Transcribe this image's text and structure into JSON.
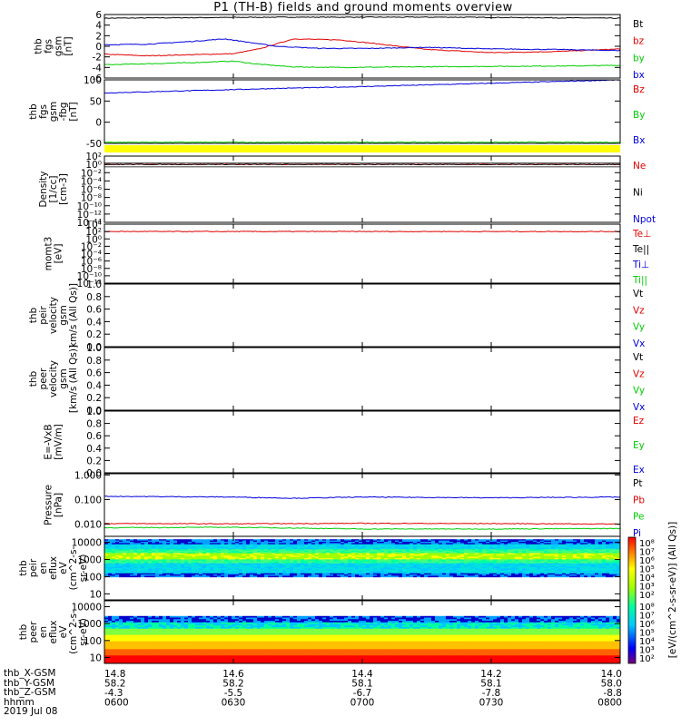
{
  "title": "P1 (TH-B) fields and ground moments overview",
  "colors": {
    "black": "#000000",
    "red": "#e00000",
    "green": "#00cc00",
    "blue": "#0000dd",
    "yellow": "#ffff00"
  },
  "chart_data": [
    {
      "id": "fgs-gsm",
      "type": "line",
      "ylabel": [
        "thb",
        "fgs",
        "gsm",
        "[nT]"
      ],
      "ylim": [
        -6,
        6
      ],
      "yticks": [
        "6",
        "4",
        "2",
        "0",
        "-2",
        "-4",
        "-6"
      ],
      "xlim": [
        0,
        120
      ],
      "series": [
        {
          "name": "Bt",
          "color": "#000000",
          "x": [
            0,
            20,
            40,
            60,
            80,
            100,
            120
          ],
          "y": [
            5.3,
            5.4,
            5.5,
            5.5,
            5.5,
            5.4,
            5.3
          ]
        },
        {
          "name": "bz",
          "color": "#e00000",
          "x": [
            0,
            10,
            20,
            30,
            36,
            44,
            55,
            62,
            75,
            90,
            105,
            120
          ],
          "y": [
            -1.5,
            -1.8,
            -1.6,
            -1.4,
            -0.5,
            1.4,
            1.2,
            0.6,
            -0.6,
            -1.2,
            -1.0,
            -0.5
          ]
        },
        {
          "name": "by",
          "color": "#00cc00",
          "x": [
            0,
            10,
            20,
            30,
            36,
            44,
            55,
            70,
            90,
            110,
            120
          ],
          "y": [
            -3.5,
            -3.3,
            -3.1,
            -2.8,
            -3.4,
            -3.9,
            -4.0,
            -3.9,
            -3.8,
            -3.7,
            -3.6
          ]
        },
        {
          "name": "bx",
          "color": "#0000dd",
          "x": [
            0,
            10,
            20,
            28,
            34,
            40,
            50,
            62,
            75,
            90,
            105,
            120
          ],
          "y": [
            0.3,
            0.4,
            0.9,
            1.4,
            0.7,
            0.0,
            -0.4,
            -0.4,
            -0.2,
            -0.5,
            -0.6,
            -0.8
          ]
        }
      ]
    },
    {
      "id": "fgs-gse",
      "type": "line",
      "ylabel": [
        "thb",
        "fgs",
        "gsm",
        "-fbg",
        "[nT]"
      ],
      "ylim": [
        -70,
        100
      ],
      "yticks": [
        "100",
        "50",
        "0",
        "-50"
      ],
      "xlim": [
        0,
        120
      ],
      "series": [
        {
          "name": "Bz",
          "color": "#e00000",
          "x": [],
          "y": []
        },
        {
          "name": "By",
          "color": "#00cc00",
          "x": [
            0,
            120
          ],
          "y": [
            -67,
            -67
          ]
        },
        {
          "name": "Bx",
          "color": "#0000dd",
          "x": [
            0,
            20,
            40,
            60,
            80,
            100,
            120
          ],
          "y": [
            65,
            71,
            77,
            82,
            88,
            94,
            100
          ]
        }
      ]
    },
    {
      "id": "density",
      "type": "line",
      "log": true,
      "ylabel": [
        "Density",
        "[1/cc]",
        "[cm-3]"
      ],
      "ylim": [
        -14,
        2
      ],
      "yticks": [
        "10²",
        "10⁰",
        "10⁻²",
        "10⁻⁴",
        "10⁻⁶",
        "10⁻⁸",
        "10⁻¹⁰",
        "10⁻¹²",
        "10⁻¹⁴"
      ],
      "xlim": [
        0,
        120
      ],
      "series": [
        {
          "name": "Ne",
          "color": "#e00000",
          "x": [
            0,
            60,
            120
          ],
          "y": [
            0.0,
            0.0,
            0.0
          ]
        },
        {
          "name": "Ni",
          "color": "#000000",
          "x": [
            0,
            120
          ],
          "y": [
            0.0,
            0.0
          ]
        },
        {
          "name": "Npot",
          "color": "#0000dd",
          "x": [],
          "y": []
        }
      ]
    },
    {
      "id": "temperature",
      "type": "line",
      "log": true,
      "ylabel": [
        "momt3",
        "[eV]"
      ],
      "ylim": [
        -12,
        4
      ],
      "yticks": [
        "10⁴",
        "10²",
        "10⁰",
        "10⁻²",
        "10⁻⁴",
        "10⁻⁶",
        "10⁻⁸",
        "10⁻¹⁰",
        "10⁻¹²"
      ],
      "xlim": [
        0,
        120
      ],
      "series": [
        {
          "name": "Te⊥",
          "color": "#e00000",
          "x": [
            0,
            120
          ],
          "y": [
            2.0,
            2.0
          ]
        },
        {
          "name": "Te||",
          "color": "#000000",
          "x": [],
          "y": []
        },
        {
          "name": "Ti⊥",
          "color": "#0000dd",
          "x": [],
          "y": []
        },
        {
          "name": "Ti||",
          "color": "#00cc00",
          "x": [],
          "y": []
        }
      ]
    },
    {
      "id": "peir-velocity",
      "type": "line",
      "ylabel": [
        "thb",
        "peir",
        "velocity",
        "gsm",
        "km/s (All Qs)]"
      ],
      "ylim": [
        0,
        1
      ],
      "yticks": [
        "1.0",
        "0.8",
        "0.6",
        "0.4",
        "0.2",
        "0.0"
      ],
      "xlim": [
        0,
        120
      ],
      "series": [
        {
          "name": "Vt",
          "color": "#000000",
          "x": [],
          "y": []
        },
        {
          "name": "Vz",
          "color": "#e00000",
          "x": [],
          "y": []
        },
        {
          "name": "Vy",
          "color": "#00cc00",
          "x": [],
          "y": []
        },
        {
          "name": "Vx",
          "color": "#0000dd",
          "x": [],
          "y": []
        }
      ]
    },
    {
      "id": "peer-velocity",
      "type": "line",
      "ylabel": [
        "thb",
        "peer",
        "velocity",
        "gsm",
        "[km/s (All Qs)]"
      ],
      "ylim": [
        0,
        1
      ],
      "yticks": [
        "1.0",
        "0.8",
        "0.6",
        "0.4",
        "0.2",
        "0.0"
      ],
      "xlim": [
        0,
        120
      ],
      "series": [
        {
          "name": "Vt",
          "color": "#000000",
          "x": [],
          "y": []
        },
        {
          "name": "Vz",
          "color": "#e00000",
          "x": [],
          "y": []
        },
        {
          "name": "Vy",
          "color": "#00cc00",
          "x": [],
          "y": []
        },
        {
          "name": "Vx",
          "color": "#0000dd",
          "x": [],
          "y": []
        }
      ]
    },
    {
      "id": "efield",
      "type": "line",
      "ylabel": [
        "E=-VxB",
        "[mV/m]"
      ],
      "ylim": [
        0,
        1
      ],
      "yticks": [
        "1.0",
        "0.8",
        "0.6",
        "0.4",
        "0.2",
        "0.0"
      ],
      "xlim": [
        0,
        120
      ],
      "series": [
        {
          "name": "Ez",
          "color": "#e00000",
          "x": [],
          "y": []
        },
        {
          "name": "Ey",
          "color": "#00cc00",
          "x": [],
          "y": []
        },
        {
          "name": "Ex",
          "color": "#0000dd",
          "x": [],
          "y": []
        }
      ]
    },
    {
      "id": "pressure",
      "type": "line",
      "log": true,
      "ylabel": [
        "Pressure",
        "[nPa]"
      ],
      "ylim": [
        -2.5,
        0.05
      ],
      "yticks": [
        "1.000",
        "0.100",
        "0.010"
      ],
      "ytick_values": [
        0,
        -1,
        -2
      ],
      "xlim": [
        0,
        120
      ],
      "series": [
        {
          "name": "Pt",
          "color": "#000000",
          "x": [],
          "y": []
        },
        {
          "name": "Pb",
          "color": "#e00000",
          "x": [
            0,
            30,
            60,
            90,
            120
          ],
          "y": [
            -1.98,
            -1.99,
            -1.97,
            -1.98,
            -2.0
          ]
        },
        {
          "name": "Pe",
          "color": "#00cc00",
          "x": [
            0,
            30,
            60,
            90,
            120
          ],
          "y": [
            -2.15,
            -2.13,
            -2.2,
            -2.2,
            -2.18
          ]
        },
        {
          "name": "Pi",
          "color": "#0000dd",
          "x": [
            0,
            30,
            44,
            60,
            90,
            120
          ],
          "y": [
            -0.87,
            -0.9,
            -0.95,
            -0.9,
            -0.93,
            -0.9
          ]
        }
      ]
    },
    {
      "id": "peir-spec",
      "type": "heatmap",
      "ylabel": [
        "thb",
        "peir",
        "en",
        "eflux",
        "eV",
        "(cm^2-s-",
        "sr-eV)"
      ],
      "yticks": [
        "10000",
        "1000",
        "100",
        "10"
      ],
      "ytick_values": [
        4,
        3,
        2,
        1
      ],
      "ylim": [
        0.65,
        4.35
      ],
      "xlim": [
        0,
        120
      ],
      "energy_band_log_eV": [
        1.98,
        4.18
      ],
      "peak_log_eV": 3.0
    },
    {
      "id": "peer-spec",
      "type": "heatmap",
      "ylabel": [
        "thb",
        "peer",
        "en",
        "eflux",
        "eV",
        "(cm^2-s-",
        "sr-eV)"
      ],
      "yticks": [
        "10000",
        "1000",
        "100",
        "10"
      ],
      "ytick_values": [
        4,
        3,
        2,
        1
      ],
      "ylim": [
        0.65,
        4.35
      ],
      "xlim": [
        0,
        120
      ],
      "energy_band_log_eV": [
        0.65,
        3.45
      ],
      "peak_log_eV": 0.7
    }
  ],
  "legends": {
    "fgs-gsm": [
      "Bt",
      "bz",
      "by",
      "bx"
    ],
    "fgs-gse": [
      "Bz",
      "By",
      "Bx"
    ],
    "density": [
      "Ne",
      "Ni",
      "Npot"
    ],
    "temperature": [
      "Te⊥",
      "Te||",
      "Ti⊥",
      "Ti||"
    ],
    "peir-velocity": [
      "Vt",
      "Vz",
      "Vy",
      "Vx"
    ],
    "peer-velocity": [
      "Vt",
      "Vz",
      "Vy",
      "Vx"
    ],
    "efield": [
      "Ez",
      "Ey",
      "Ex"
    ],
    "pressure": [
      "Pt",
      "Pb",
      "Pe",
      "Pi"
    ]
  },
  "colorbar": {
    "ticks": [
      "10⁸",
      "10⁷",
      "10⁶",
      "10⁵",
      "10⁴",
      "10³",
      "10²"
    ],
    "label": "[eV/(cm^2-s-sr-eV)] (All Qs)]"
  },
  "xaxis": {
    "ticks_hhmm": [
      "0600",
      "0630",
      "0700",
      "0730",
      "0800"
    ],
    "x_gsm": [
      "14.8",
      "14.6",
      "14.4",
      "14.2",
      "14.0"
    ],
    "y_gsm": [
      "58.2",
      "58.2",
      "58.1",
      "58.1",
      "58.0"
    ],
    "z_gsm": [
      "-4.3",
      "-5.5",
      "-6.7",
      "-7.8",
      "-8.8"
    ]
  },
  "footer": {
    "row_x": "thb_X-GSM",
    "row_y": "thb_Y-GSM",
    "row_z": "thb_Z-GSM",
    "row_t": "hhmm",
    "date": "2019 Jul 08"
  }
}
